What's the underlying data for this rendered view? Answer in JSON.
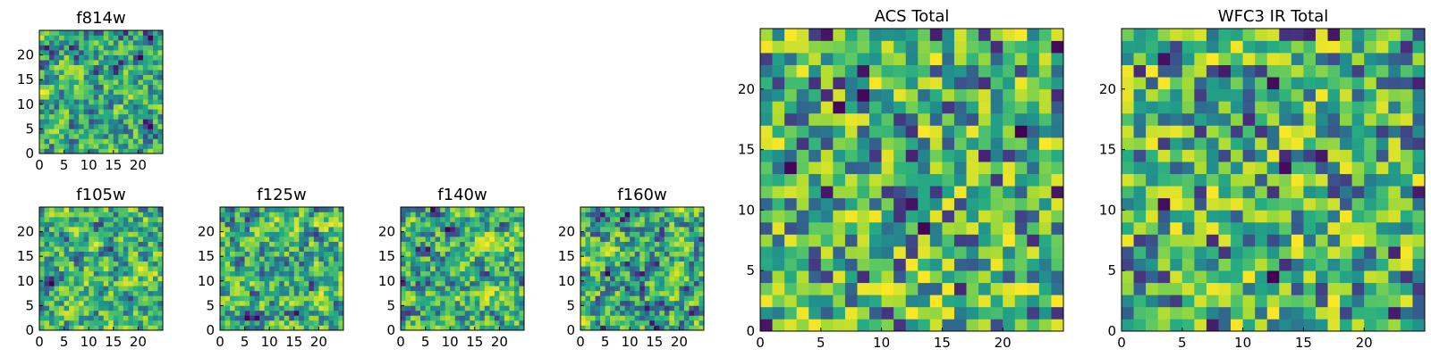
{
  "figure": {
    "description_note": ""
  },
  "chart_data": [
    {
      "type": "heatmap",
      "title": "f814w",
      "colormap": "viridis",
      "grid_size": 25,
      "xlim": [
        0,
        24
      ],
      "ylim": [
        0,
        24
      ],
      "xticks": [
        0,
        5,
        10,
        15,
        20
      ],
      "yticks": [
        0,
        5,
        10,
        15,
        20
      ],
      "value_range": [
        0,
        1
      ],
      "seed": 814
    },
    {
      "type": "heatmap",
      "title": "f105w",
      "colormap": "viridis",
      "grid_size": 25,
      "xlim": [
        0,
        24
      ],
      "ylim": [
        0,
        24
      ],
      "xticks": [
        0,
        5,
        10,
        15,
        20
      ],
      "yticks": [
        0,
        5,
        10,
        15,
        20
      ],
      "value_range": [
        0,
        1
      ],
      "seed": 105
    },
    {
      "type": "heatmap",
      "title": "f125w",
      "colormap": "viridis",
      "grid_size": 25,
      "xlim": [
        0,
        24
      ],
      "ylim": [
        0,
        24
      ],
      "xticks": [
        0,
        5,
        10,
        15,
        20
      ],
      "yticks": [
        0,
        5,
        10,
        15,
        20
      ],
      "value_range": [
        0,
        1
      ],
      "seed": 125
    },
    {
      "type": "heatmap",
      "title": "f140w",
      "colormap": "viridis",
      "grid_size": 25,
      "xlim": [
        0,
        24
      ],
      "ylim": [
        0,
        24
      ],
      "xticks": [
        0,
        5,
        10,
        15,
        20
      ],
      "yticks": [
        0,
        5,
        10,
        15,
        20
      ],
      "value_range": [
        0,
        1
      ],
      "seed": 140
    },
    {
      "type": "heatmap",
      "title": "f160w",
      "colormap": "viridis",
      "grid_size": 25,
      "xlim": [
        0,
        24
      ],
      "ylim": [
        0,
        24
      ],
      "xticks": [
        0,
        5,
        10,
        15,
        20
      ],
      "yticks": [
        0,
        5,
        10,
        15,
        20
      ],
      "value_range": [
        0,
        1
      ],
      "seed": 160
    },
    {
      "type": "heatmap",
      "title": "ACS Total",
      "colormap": "viridis",
      "grid_size": 25,
      "xlim": [
        0,
        24
      ],
      "ylim": [
        0,
        24
      ],
      "xticks": [
        0,
        5,
        10,
        15,
        20
      ],
      "yticks": [
        0,
        5,
        10,
        15,
        20
      ],
      "value_range": [
        0,
        1
      ],
      "seed": 2001
    },
    {
      "type": "heatmap",
      "title": "WFC3 IR Total",
      "colormap": "viridis",
      "grid_size": 25,
      "xlim": [
        0,
        24
      ],
      "ylim": [
        0,
        24
      ],
      "xticks": [
        0,
        5,
        10,
        15,
        20
      ],
      "yticks": [
        0,
        5,
        10,
        15,
        20
      ],
      "value_range": [
        0,
        1
      ],
      "seed": 3001
    }
  ]
}
